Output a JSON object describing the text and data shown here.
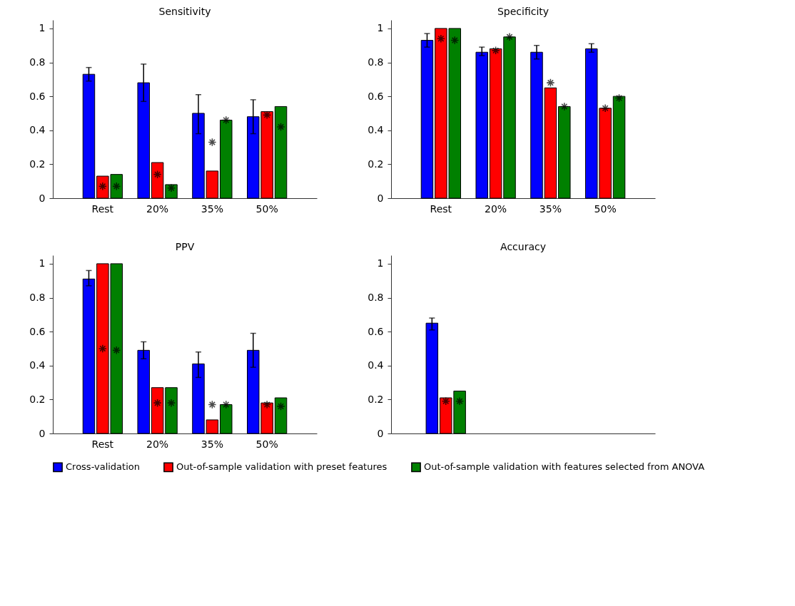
{
  "chart_data": [
    {
      "type": "bar",
      "title": "Sensitivity",
      "categories": [
        "Rest",
        "20%",
        "35%",
        "50%"
      ],
      "ylim": [
        0,
        1.05
      ],
      "yticks": [
        0,
        0.2,
        0.4,
        0.6,
        0.8,
        1
      ],
      "grid": false,
      "legend": "bottom",
      "series": [
        {
          "name": "Cross-validation",
          "color": "#0000ff",
          "values": [
            0.73,
            0.68,
            0.5,
            0.48
          ],
          "errors": [
            [
              0.69,
              0.77
            ],
            [
              0.57,
              0.79
            ],
            [
              0.38,
              0.61
            ],
            [
              0.38,
              0.58
            ]
          ]
        },
        {
          "name": "Out-of-sample validation with preset features",
          "color": "#ff0000",
          "values": [
            0.13,
            0.21,
            0.16,
            0.51
          ]
        },
        {
          "name": "Out-of-sample validation with features selected from ANOVA",
          "color": "#008000",
          "values": [
            0.14,
            0.08,
            0.46,
            0.54
          ]
        },
        {
          "type": "scatter",
          "marker": "cross",
          "color": "#000000",
          "values": [
            0.07,
            0.14,
            0.33,
            0.49
          ]
        },
        {
          "type": "scatter",
          "marker": "cross",
          "color": "#000000",
          "values": [
            0.07,
            0.06,
            0.46,
            0.42
          ]
        }
      ]
    },
    {
      "type": "bar",
      "title": "Specificity",
      "categories": [
        "Rest",
        "20%",
        "35%",
        "50%"
      ],
      "ylim": [
        0,
        1.05
      ],
      "yticks": [
        0,
        0.2,
        0.4,
        0.6,
        0.8,
        1
      ],
      "grid": false,
      "legend": "bottom",
      "series": [
        {
          "name": "Cross-validation",
          "color": "#0000ff",
          "values": [
            0.93,
            0.86,
            0.86,
            0.88
          ],
          "errors": [
            [
              0.89,
              0.97
            ],
            [
              0.84,
              0.89
            ],
            [
              0.82,
              0.9
            ],
            [
              0.86,
              0.91
            ]
          ]
        },
        {
          "name": "Out-of-sample validation with preset features",
          "color": "#ff0000",
          "values": [
            1,
            0.88,
            0.65,
            0.53
          ]
        },
        {
          "name": "Out-of-sample validation with features selected from ANOVA",
          "color": "#008000",
          "values": [
            1,
            0.95,
            0.54,
            0.6
          ]
        },
        {
          "type": "scatter",
          "marker": "cross",
          "color": "#000000",
          "values": [
            0.94,
            0.87,
            0.68,
            0.53
          ]
        },
        {
          "type": "scatter",
          "marker": "cross",
          "color": "#000000",
          "values": [
            0.93,
            0.95,
            0.54,
            0.59
          ]
        }
      ]
    },
    {
      "type": "bar",
      "title": "PPV",
      "categories": [
        "Rest",
        "20%",
        "35%",
        "50%"
      ],
      "ylim": [
        0,
        1.05
      ],
      "yticks": [
        0,
        0.2,
        0.4,
        0.6,
        0.8,
        1
      ],
      "grid": false,
      "legend": "bottom",
      "series": [
        {
          "name": "Cross-validation",
          "color": "#0000ff",
          "values": [
            0.91,
            0.49,
            0.41,
            0.49
          ],
          "errors": [
            [
              0.87,
              0.96
            ],
            [
              0.44,
              0.54
            ],
            [
              0.33,
              0.48
            ],
            [
              0.39,
              0.59
            ]
          ]
        },
        {
          "name": "Out-of-sample validation with preset features",
          "color": "#ff0000",
          "values": [
            1,
            0.27,
            0.08,
            0.18
          ]
        },
        {
          "name": "Out-of-sample validation with features selected from ANOVA",
          "color": "#008000",
          "values": [
            1,
            0.27,
            0.17,
            0.21
          ]
        },
        {
          "type": "scatter",
          "marker": "cross",
          "color": "#000000",
          "values": [
            0.5,
            0.18,
            0.17,
            0.17
          ]
        },
        {
          "type": "scatter",
          "marker": "cross",
          "color": "#000000",
          "values": [
            0.49,
            0.18,
            0.17,
            0.16
          ]
        }
      ]
    },
    {
      "type": "bar",
      "title": "Accuracy",
      "categories": [
        null
      ],
      "ylim": [
        0,
        1.05
      ],
      "yticks": [
        0,
        0.2,
        0.4,
        0.6,
        0.8,
        1
      ],
      "grid": false,
      "legend": "bottom",
      "series": [
        {
          "name": "Cross-validation",
          "color": "#0000ff",
          "values": [
            0.65
          ],
          "errors": [
            [
              0.61,
              0.68
            ]
          ]
        },
        {
          "name": "Out-of-sample validation with preset features",
          "color": "#ff0000",
          "values": [
            0.21
          ]
        },
        {
          "name": "Out-of-sample validation with features selected from ANOVA",
          "color": "#008000",
          "values": [
            0.25
          ]
        },
        {
          "type": "scatter",
          "marker": "cross",
          "color": "#000000",
          "values": [
            0.19
          ]
        },
        {
          "type": "scatter",
          "marker": "cross",
          "color": "#000000",
          "values": [
            0.19
          ]
        }
      ]
    }
  ]
}
